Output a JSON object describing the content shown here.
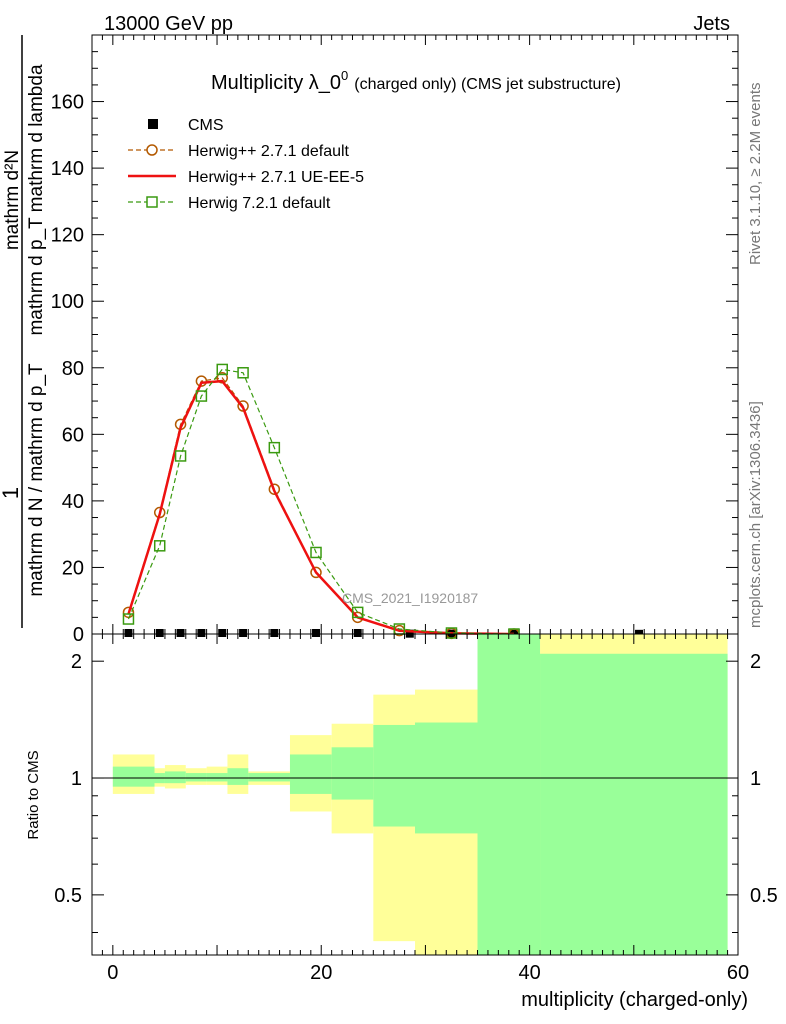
{
  "header": {
    "left": "13000 GeV pp",
    "right": "Jets"
  },
  "side": {
    "rivet": "Rivet 3.1.10, ≥ 2.2M events",
    "mcplots": "mcplots.cern.ch [arXiv:1306.3436]"
  },
  "colors": {
    "cms": "#000000",
    "herwigpp_default": "#b35900",
    "herwigpp_ueee5": "#ee1111",
    "herwig7_default": "#3a9a10",
    "band_outer": "#ffff99",
    "band_inner": "#99ff99"
  },
  "chart_data": [
    {
      "type": "line",
      "title_main": "Multiplicity λ_0",
      "title_sup": "0",
      "title_suffix": "(charged only) (CMS jet substructure)",
      "ylabel_numer": "1",
      "ylabel_denom": "mathrm d N / mathrm d p_T",
      "ylabel_right_numer": "mathrm d²N",
      "ylabel_right_denom": "mathrm d p_T mathrm d lambda",
      "analysis_label": "CMS_2021_I1920187",
      "xlim": [
        -2,
        60
      ],
      "ylim": [
        0,
        180
      ],
      "yticks": [
        0,
        20,
        40,
        60,
        80,
        100,
        120,
        140,
        160
      ],
      "xticks": [
        0,
        20,
        40,
        60
      ],
      "legend_position": "top-left",
      "series": [
        {
          "name": "CMS",
          "style": "marker-square",
          "x": [
            1.5,
            4.5,
            6.5,
            8.5,
            10.5,
            12.5,
            15.5,
            19.5,
            23.5,
            28.5,
            32.5,
            38.5,
            50.5
          ],
          "y": [
            0.3,
            0.3,
            0.3,
            0.3,
            0.3,
            0.3,
            0.3,
            0.3,
            0.3,
            0.1,
            0.1,
            0.05,
            0.05
          ]
        },
        {
          "name": "Herwig++ 2.7.1 default",
          "style": "dashed-open-circle",
          "x": [
            1.5,
            4.5,
            6.5,
            8.5,
            10.5,
            12.5,
            15.5,
            19.5,
            23.5,
            27.5,
            32.5,
            38.5
          ],
          "y": [
            6.5,
            36.5,
            63,
            76,
            77,
            68.5,
            43.5,
            18.5,
            5,
            1,
            0.2,
            0
          ]
        },
        {
          "name": "Herwig++ 2.7.1 UE-EE-5",
          "style": "solid",
          "x": [
            1.5,
            4.5,
            6.5,
            8.5,
            10.5,
            12.5,
            15.5,
            19.5,
            23.5,
            27.5,
            32.5,
            38.5
          ],
          "y": [
            6,
            36,
            62,
            75.5,
            76,
            68,
            43,
            18.5,
            5,
            1,
            0.2,
            0
          ]
        },
        {
          "name": "Herwig 7.2.1 default",
          "style": "dashed-open-square",
          "x": [
            1.5,
            4.5,
            6.5,
            8.5,
            10.5,
            12.5,
            15.5,
            19.5,
            23.5,
            27.5,
            32.5,
            38.5
          ],
          "y": [
            4.5,
            26.5,
            53.5,
            71.5,
            79.5,
            78.5,
            56,
            24.5,
            6.5,
            1.5,
            0.3,
            0
          ]
        }
      ]
    },
    {
      "type": "area",
      "ylabel": "Ratio to CMS",
      "xlabel": "multiplicity (charged-only)",
      "xlim": [
        -2,
        60
      ],
      "ylim": [
        0.35,
        2.35
      ],
      "yticks": [
        0.5,
        1,
        2
      ],
      "ytick_labels": [
        "0.5",
        "1",
        "2"
      ],
      "xticks": [
        0,
        20,
        40,
        60
      ],
      "bins": [
        {
          "lo": 0,
          "hi": 4,
          "inner": [
            0.95,
            1.07
          ],
          "outer": [
            0.91,
            1.15
          ]
        },
        {
          "lo": 4,
          "hi": 5,
          "inner": [
            0.97,
            1.03
          ],
          "outer": [
            0.95,
            1.06
          ]
        },
        {
          "lo": 5,
          "hi": 7,
          "inner": [
            0.97,
            1.04
          ],
          "outer": [
            0.94,
            1.08
          ]
        },
        {
          "lo": 7,
          "hi": 9,
          "inner": [
            0.98,
            1.03
          ],
          "outer": [
            0.96,
            1.06
          ]
        },
        {
          "lo": 9,
          "hi": 11,
          "inner": [
            0.98,
            1.03
          ],
          "outer": [
            0.96,
            1.07
          ]
        },
        {
          "lo": 11,
          "hi": 13,
          "inner": [
            0.96,
            1.06
          ],
          "outer": [
            0.91,
            1.15
          ]
        },
        {
          "lo": 13,
          "hi": 17,
          "inner": [
            0.98,
            1.03
          ],
          "outer": [
            0.96,
            1.04
          ]
        },
        {
          "lo": 17,
          "hi": 21,
          "inner": [
            0.91,
            1.15
          ],
          "outer": [
            0.82,
            1.29
          ]
        },
        {
          "lo": 21,
          "hi": 25,
          "inner": [
            0.88,
            1.2
          ],
          "outer": [
            0.72,
            1.38
          ]
        },
        {
          "lo": 25,
          "hi": 29,
          "inner": [
            0.75,
            1.37
          ],
          "outer": [
            0.38,
            1.64
          ]
        },
        {
          "lo": 29,
          "hi": 35,
          "inner": [
            0.72,
            1.39
          ],
          "outer": [
            0.35,
            1.69
          ]
        },
        {
          "lo": 35,
          "hi": 41,
          "inner": [
            0.35,
            2.35
          ],
          "outer": [
            0.35,
            2.35
          ]
        },
        {
          "lo": 41,
          "hi": 59,
          "inner": [
            0.35,
            2.09
          ],
          "outer": [
            0.35,
            2.35
          ]
        }
      ]
    }
  ]
}
